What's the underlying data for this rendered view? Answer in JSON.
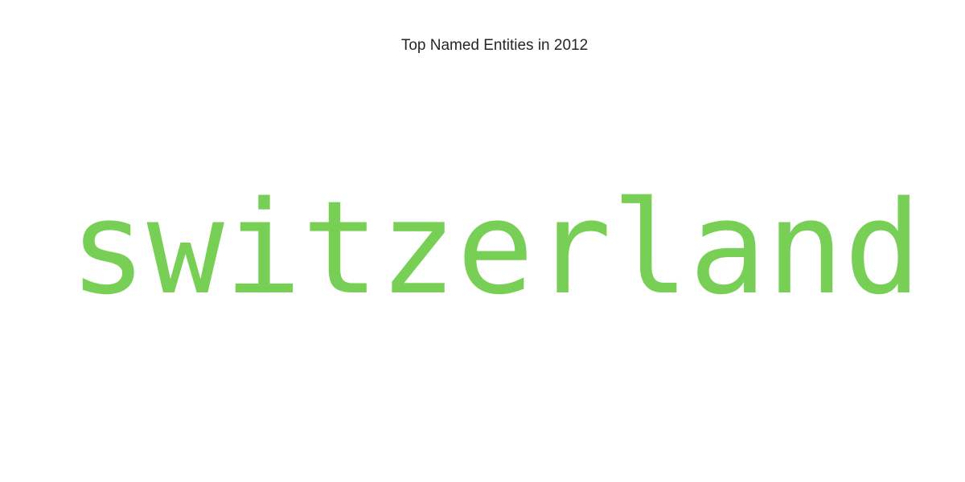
{
  "chart_data": {
    "type": "wordcloud",
    "title": "Top Named Entities in 2012",
    "words": [
      {
        "text": "switzerland",
        "color": "#77d055"
      }
    ]
  }
}
